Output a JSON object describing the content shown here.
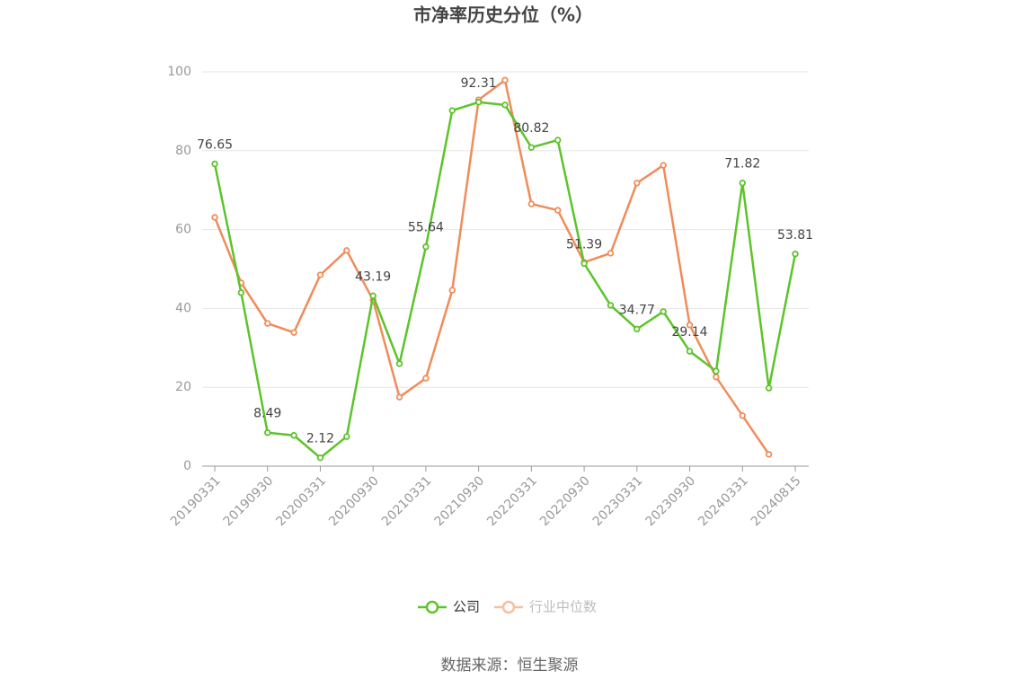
{
  "chart_data": {
    "type": "line",
    "title": "市净率历史分位（%）",
    "source": "数据来源：恒生聚源",
    "categories": [
      "20190331",
      null,
      "20190930",
      null,
      "20200331",
      null,
      "20200930",
      null,
      "20210331",
      null,
      "20210930",
      null,
      "20220331",
      null,
      "20220930",
      null,
      "20230331",
      null,
      "20230930",
      null,
      "20240331",
      null,
      "20240815"
    ],
    "ylim": [
      0,
      100
    ],
    "yticks": [
      0,
      20,
      40,
      60,
      80,
      100
    ],
    "grid": true,
    "series": [
      {
        "name": "公司",
        "color": "#5cc42b",
        "values": [
          76.65,
          44,
          8.49,
          7.8,
          2.12,
          7.5,
          43.19,
          26,
          55.64,
          90.2,
          92.31,
          91.6,
          80.82,
          82.7,
          51.39,
          40.8,
          34.77,
          39.2,
          29.14,
          24.1,
          71.82,
          19.8,
          53.81
        ],
        "value_labels": [
          "76.65",
          null,
          "8.49",
          null,
          "2.12",
          null,
          "43.19",
          null,
          "55.64",
          null,
          "92.31",
          null,
          "80.82",
          null,
          "51.39",
          null,
          "34.77",
          null,
          "29.14",
          null,
          "71.82",
          null,
          "53.81"
        ]
      },
      {
        "name": "行业中位数",
        "color": "#f08c5a",
        "values": [
          63.1,
          46.5,
          36.2,
          33.9,
          48.5,
          54.7,
          42.1,
          17.5,
          22.3,
          44.6,
          92.9,
          97.9,
          66.5,
          64.9,
          51.7,
          54.0,
          71.8,
          76.3,
          35.8,
          22.6,
          12.8,
          3.0,
          null
        ]
      }
    ]
  }
}
